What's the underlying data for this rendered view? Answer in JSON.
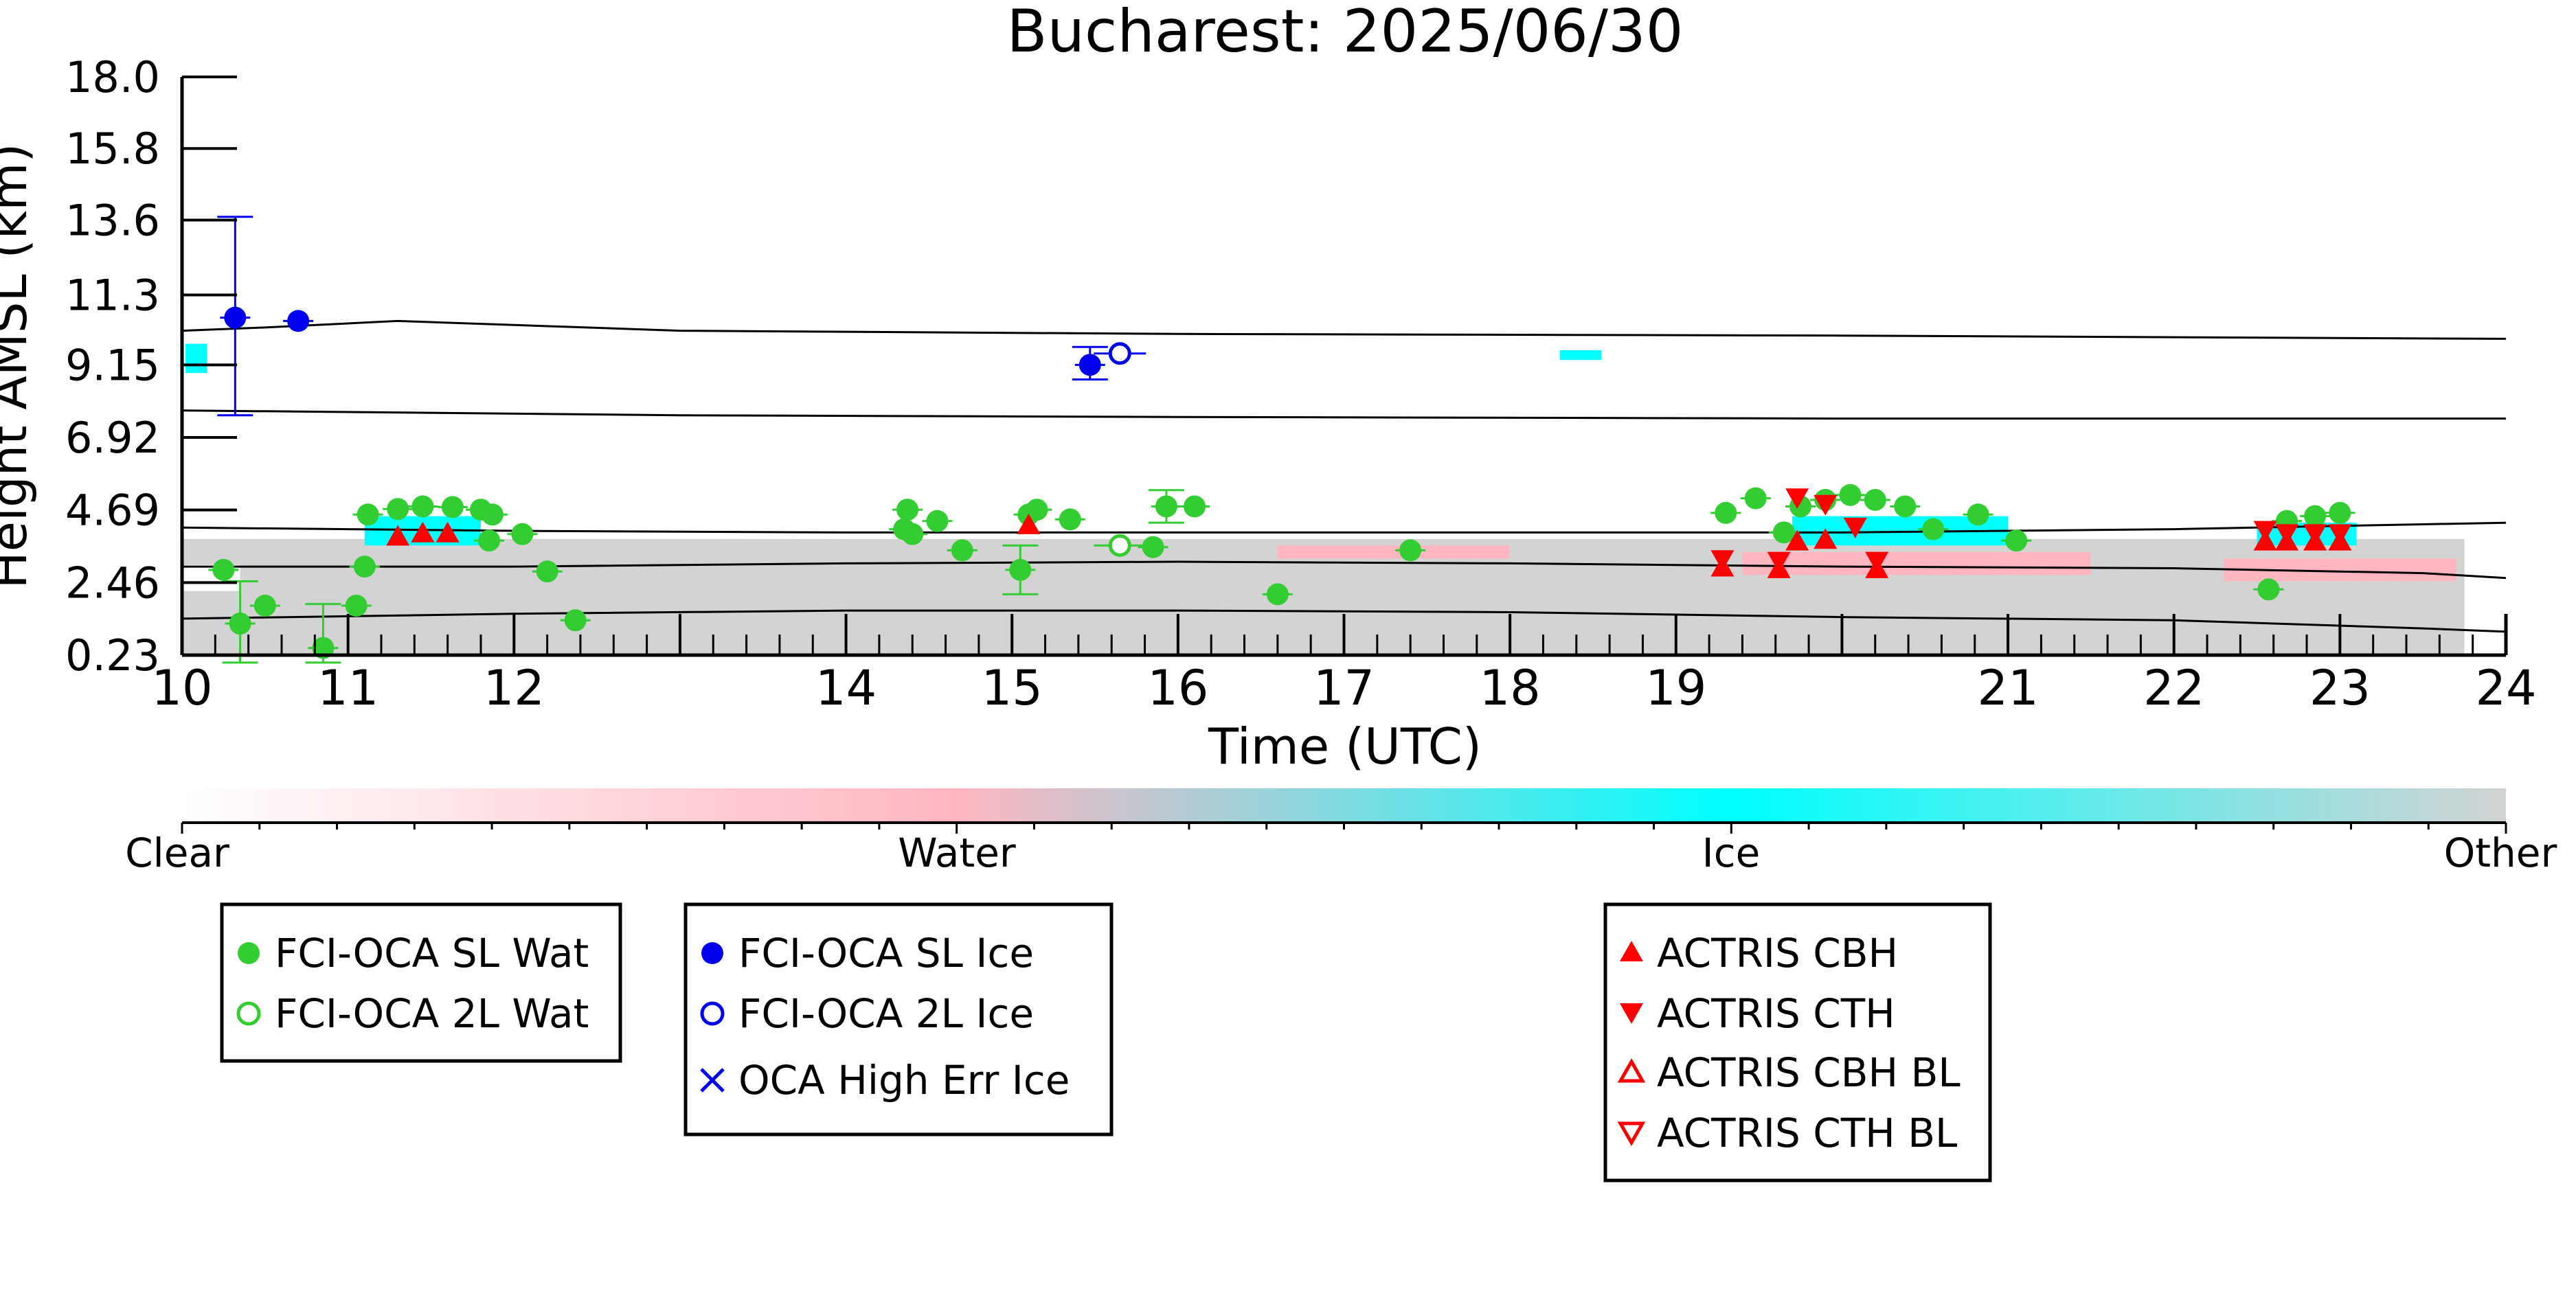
{
  "chart_data": {
    "type": "scatter",
    "title": "Bucharest: 2025/06/30",
    "xlabel": "Time (UTC)",
    "ylabel": "Height AMSL (km)",
    "xlim": [
      10,
      24
    ],
    "ylim": [
      0.23,
      18.0
    ],
    "x_ticks": [
      "10",
      "11",
      "12",
      "14",
      "15",
      "16",
      "17",
      "18",
      "19",
      "21",
      "22",
      "23",
      "24"
    ],
    "y_ticks": [
      "18.0",
      "15.8",
      "13.6",
      "11.3",
      "9.15",
      "6.92",
      "4.69",
      "2.46",
      "0.23"
    ],
    "colorbar": {
      "labels": [
        "Clear",
        "Water",
        "Ice",
        "Other"
      ],
      "colors": [
        "#ffffff",
        "#ffb6c1",
        "#00ffff",
        "#d3d3d3"
      ]
    },
    "legend_groups": [
      [
        {
          "label": "FCI-OCA SL Wat",
          "marker": "filled-circle",
          "color": "#33cc33"
        },
        {
          "label": "FCI-OCA 2L Wat",
          "marker": "open-circle",
          "color": "#33cc33"
        }
      ],
      [
        {
          "label": "FCI-OCA SL Ice",
          "marker": "filled-circle",
          "color": "#0000ee"
        },
        {
          "label": "FCI-OCA 2L Ice",
          "marker": "open-circle",
          "color": "#0000ee"
        },
        {
          "label": "OCA High Err Ice",
          "marker": "x",
          "color": "#0000ee"
        }
      ],
      [
        {
          "label": "ACTRIS CBH",
          "marker": "filled-triangle-up",
          "color": "#ff0000"
        },
        {
          "label": "ACTRIS CTH",
          "marker": "filled-triangle-down",
          "color": "#ff0000"
        },
        {
          "label": "ACTRIS CBH BL",
          "marker": "open-triangle-up",
          "color": "#ff0000"
        },
        {
          "label": "ACTRIS CTH BL",
          "marker": "open-triangle-down",
          "color": "#ff0000"
        }
      ]
    ],
    "series": [
      {
        "name": "FCI-OCA SL Wat",
        "points": [
          {
            "x": 10.25,
            "y": 2.85
          },
          {
            "x": 10.35,
            "y": 1.2,
            "err": [
              0.0,
              2.5
            ]
          },
          {
            "x": 10.5,
            "y": 1.75
          },
          {
            "x": 10.85,
            "y": 0.45,
            "err": [
              0.0,
              1.8
            ]
          },
          {
            "x": 11.05,
            "y": 1.75
          },
          {
            "x": 11.1,
            "y": 2.95
          },
          {
            "x": 11.12,
            "y": 4.55
          },
          {
            "x": 11.3,
            "y": 4.72
          },
          {
            "x": 11.45,
            "y": 4.8
          },
          {
            "x": 11.63,
            "y": 4.78
          },
          {
            "x": 11.8,
            "y": 4.7
          },
          {
            "x": 11.85,
            "y": 3.75
          },
          {
            "x": 11.87,
            "y": 4.55
          },
          {
            "x": 12.05,
            "y": 3.95
          },
          {
            "x": 12.2,
            "y": 2.8
          },
          {
            "x": 12.37,
            "y": 1.3
          },
          {
            "x": 14.35,
            "y": 4.1
          },
          {
            "x": 14.37,
            "y": 4.7
          },
          {
            "x": 14.4,
            "y": 3.95
          },
          {
            "x": 14.55,
            "y": 4.35
          },
          {
            "x": 14.7,
            "y": 3.45
          },
          {
            "x": 15.05,
            "y": 2.85,
            "err": [
              2.1,
              3.6
            ]
          },
          {
            "x": 15.1,
            "y": 4.55
          },
          {
            "x": 15.15,
            "y": 4.7
          },
          {
            "x": 15.35,
            "y": 4.4
          },
          {
            "x": 15.85,
            "y": 3.55
          },
          {
            "x": 15.93,
            "y": 4.8,
            "err": [
              4.3,
              5.3
            ]
          },
          {
            "x": 16.1,
            "y": 4.8
          },
          {
            "x": 16.6,
            "y": 2.1
          },
          {
            "x": 17.4,
            "y": 3.45
          },
          {
            "x": 19.3,
            "y": 4.6
          },
          {
            "x": 19.48,
            "y": 5.05
          },
          {
            "x": 19.65,
            "y": 4.0
          },
          {
            "x": 19.75,
            "y": 4.8
          },
          {
            "x": 19.9,
            "y": 5.0
          },
          {
            "x": 20.05,
            "y": 5.15
          },
          {
            "x": 20.2,
            "y": 5.0
          },
          {
            "x": 20.38,
            "y": 4.8
          },
          {
            "x": 20.55,
            "y": 4.1
          },
          {
            "x": 20.82,
            "y": 4.55
          },
          {
            "x": 21.05,
            "y": 3.75
          },
          {
            "x": 22.57,
            "y": 2.25
          },
          {
            "x": 22.68,
            "y": 4.35
          },
          {
            "x": 22.85,
            "y": 4.5
          },
          {
            "x": 23.0,
            "y": 4.6
          }
        ]
      },
      {
        "name": "FCI-OCA 2L Wat",
        "points": [
          {
            "x": 15.65,
            "y": 3.6
          }
        ]
      },
      {
        "name": "FCI-OCA SL Ice",
        "points": [
          {
            "x": 10.32,
            "y": 10.6,
            "err": [
              7.6,
              13.7
            ]
          },
          {
            "x": 10.7,
            "y": 10.5
          },
          {
            "x": 15.47,
            "y": 9.15,
            "err": [
              8.7,
              9.7
            ]
          }
        ]
      },
      {
        "name": "FCI-OCA 2L Ice",
        "points": [
          {
            "x": 15.65,
            "y": 9.5
          }
        ]
      },
      {
        "name": "ACTRIS CBH",
        "points": [
          {
            "x": 11.3,
            "y": 3.85
          },
          {
            "x": 11.45,
            "y": 3.95
          },
          {
            "x": 11.6,
            "y": 3.95
          },
          {
            "x": 15.1,
            "y": 4.2
          },
          {
            "x": 19.28,
            "y": 2.9
          },
          {
            "x": 19.62,
            "y": 2.85
          },
          {
            "x": 19.73,
            "y": 3.7
          },
          {
            "x": 19.9,
            "y": 3.75
          },
          {
            "x": 20.21,
            "y": 2.85
          },
          {
            "x": 22.55,
            "y": 3.7
          },
          {
            "x": 22.68,
            "y": 3.7
          },
          {
            "x": 22.85,
            "y": 3.7
          },
          {
            "x": 23.0,
            "y": 3.7
          }
        ]
      },
      {
        "name": "ACTRIS CTH",
        "points": [
          {
            "x": 19.28,
            "y": 3.2
          },
          {
            "x": 19.62,
            "y": 3.15
          },
          {
            "x": 19.73,
            "y": 5.1
          },
          {
            "x": 19.9,
            "y": 4.9
          },
          {
            "x": 20.08,
            "y": 4.2
          },
          {
            "x": 20.21,
            "y": 3.15
          },
          {
            "x": 22.55,
            "y": 4.1
          },
          {
            "x": 22.68,
            "y": 4.0
          },
          {
            "x": 22.85,
            "y": 4.0
          },
          {
            "x": 23.0,
            "y": 4.0
          }
        ]
      }
    ],
    "lines": [
      {
        "points": [
          [
            10,
            10.2
          ],
          [
            10.5,
            10.3
          ],
          [
            11.3,
            10.5
          ],
          [
            13,
            10.2
          ],
          [
            16,
            10.1
          ],
          [
            20,
            10.05
          ],
          [
            24,
            9.95
          ]
        ]
      },
      {
        "points": [
          [
            10,
            7.75
          ],
          [
            11,
            7.7
          ],
          [
            13,
            7.6
          ],
          [
            16,
            7.55
          ],
          [
            20,
            7.5
          ],
          [
            24,
            7.5
          ]
        ]
      },
      {
        "points": [
          [
            10,
            4.15
          ],
          [
            12,
            4.05
          ],
          [
            14,
            4.0
          ],
          [
            16,
            4.0
          ],
          [
            18,
            4.0
          ],
          [
            20,
            4.0
          ],
          [
            22,
            4.1
          ],
          [
            23.5,
            4.25
          ],
          [
            24,
            4.3
          ]
        ]
      },
      {
        "points": [
          [
            10,
            2.95
          ],
          [
            12,
            2.95
          ],
          [
            14,
            3.05
          ],
          [
            16,
            3.1
          ],
          [
            18,
            3.05
          ],
          [
            20,
            2.95
          ],
          [
            22,
            2.9
          ],
          [
            23.5,
            2.75
          ],
          [
            24,
            2.6
          ]
        ]
      },
      {
        "points": [
          [
            10,
            1.35
          ],
          [
            12,
            1.5
          ],
          [
            14,
            1.6
          ],
          [
            16,
            1.6
          ],
          [
            18,
            1.55
          ],
          [
            20,
            1.4
          ],
          [
            22,
            1.3
          ],
          [
            23.5,
            1.05
          ],
          [
            24,
            0.95
          ]
        ]
      }
    ]
  }
}
